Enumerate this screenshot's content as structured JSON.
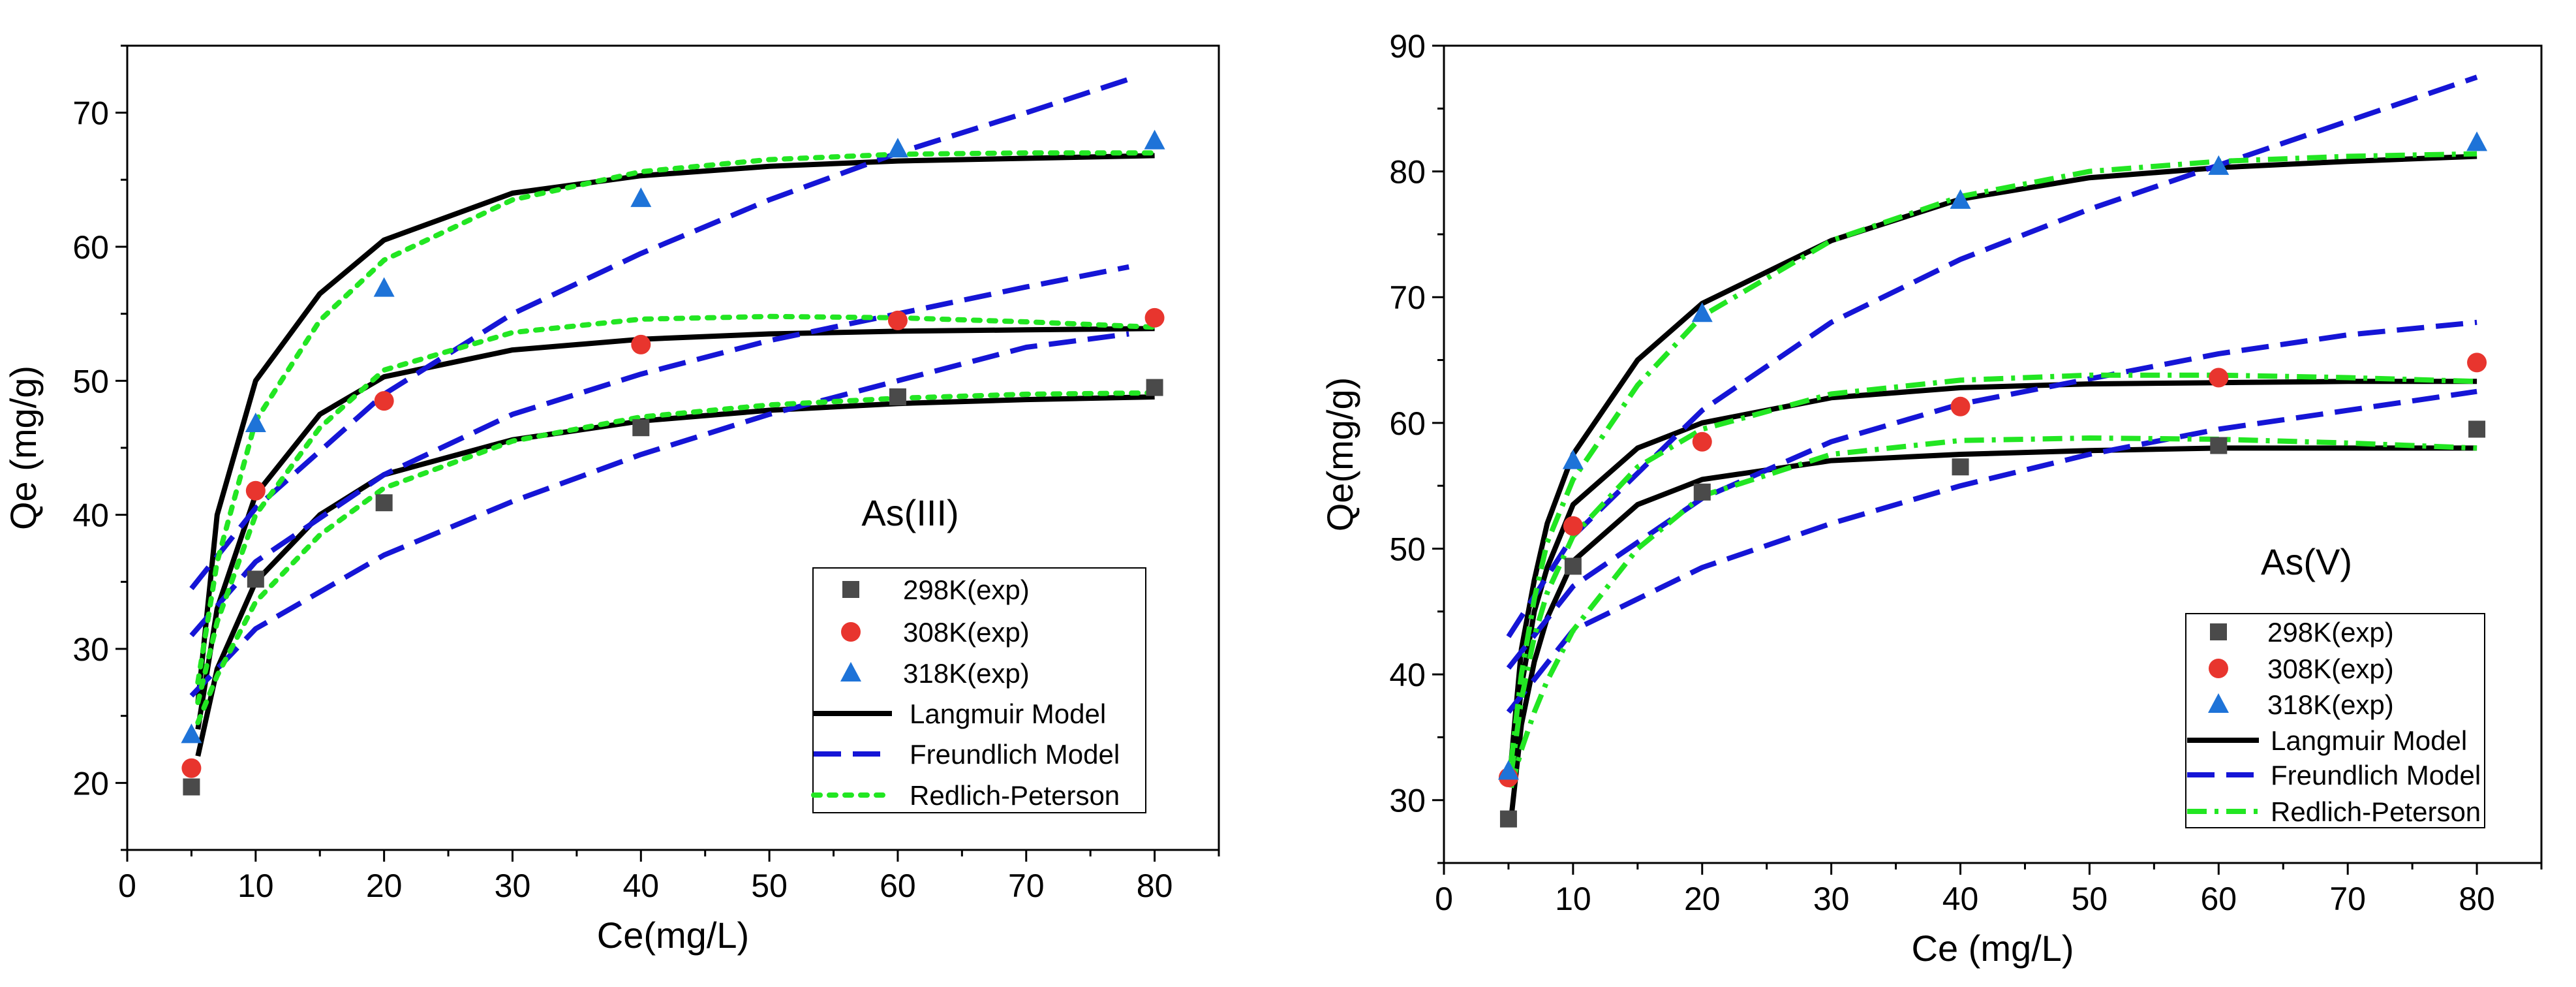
{
  "chart_data": [
    {
      "type": "scatter",
      "xlabel": "Ce(mg/L)",
      "ylabel": "Qe (mg/g)",
      "annotation": "As(III)",
      "xlim": [
        0,
        85
      ],
      "ylim": [
        15,
        75
      ],
      "xticks": [
        "0",
        "10",
        "20",
        "30",
        "40",
        "50",
        "60",
        "70",
        "80"
      ],
      "yticks": [
        "20",
        "30",
        "40",
        "50",
        "60",
        "70"
      ],
      "legend": {
        "position": "bottom-right",
        "entries": [
          "298K(exp)",
          "308K(exp)",
          "318K(exp)",
          "Langmuir Model",
          "Freundlich Model",
          "Redlich-Peterson"
        ]
      },
      "series": [
        {
          "name": "298K(exp)",
          "marker": "square",
          "color": "#4a4a4a",
          "x": [
            5,
            10,
            20,
            40,
            60,
            80
          ],
          "y": [
            19.7,
            35.2,
            40.9,
            46.5,
            48.8,
            49.5
          ]
        },
        {
          "name": "308K(exp)",
          "marker": "circle",
          "color": "#e8352e",
          "x": [
            5,
            10,
            20,
            40,
            60,
            80
          ],
          "y": [
            21.1,
            41.8,
            48.5,
            52.7,
            54.5,
            54.7
          ]
        },
        {
          "name": "318K(exp)",
          "marker": "triangle",
          "color": "#1e73d8",
          "x": [
            5,
            10,
            20,
            40,
            60,
            80
          ],
          "y": [
            23.6,
            46.8,
            56.9,
            63.6,
            67.3,
            67.9
          ]
        }
      ],
      "models": [
        {
          "name": "Langmuir Model",
          "color": "#000000",
          "style": "solid",
          "curves": [
            {
              "x": [
                5.5,
                7,
                10,
                15,
                20,
                30,
                40,
                50,
                60,
                70,
                80
              ],
              "y": [
                22,
                28.5,
                35,
                40,
                43,
                45.6,
                47,
                47.8,
                48.3,
                48.6,
                48.8
              ]
            },
            {
              "x": [
                5.5,
                7,
                10,
                15,
                20,
                30,
                40,
                50,
                60,
                70,
                80
              ],
              "y": [
                24,
                33,
                41.5,
                47.5,
                50.3,
                52.3,
                53.1,
                53.5,
                53.7,
                53.8,
                53.9
              ]
            },
            {
              "x": [
                5.5,
                7,
                10,
                15,
                20,
                30,
                40,
                50,
                60,
                70,
                80
              ],
              "y": [
                26,
                40,
                50,
                56.5,
                60.5,
                64,
                65.3,
                66,
                66.4,
                66.6,
                66.8
              ]
            }
          ]
        },
        {
          "name": "Freundlich Model",
          "color": "#1515d6",
          "style": "dashed",
          "curves": [
            {
              "x": [
                5,
                10,
                20,
                30,
                40,
                50,
                60,
                70,
                78
              ],
              "y": [
                26.5,
                31.5,
                37,
                41,
                44.5,
                47.5,
                50,
                52.5,
                53.5
              ]
            },
            {
              "x": [
                5,
                10,
                20,
                30,
                40,
                50,
                60,
                70,
                78
              ],
              "y": [
                31,
                36.5,
                43,
                47.5,
                50.5,
                53,
                55,
                57,
                58.5
              ]
            },
            {
              "x": [
                5,
                10,
                20,
                30,
                40,
                50,
                60,
                70,
                78
              ],
              "y": [
                34.5,
                40.5,
                49,
                55,
                59.5,
                63.5,
                67,
                70,
                72.5
              ]
            }
          ]
        },
        {
          "name": "Redlich-Peterson",
          "color": "#22e622",
          "style": "dotted",
          "curves": [
            {
              "x": [
                5.5,
                7,
                10,
                15,
                20,
                30,
                40,
                50,
                60,
                70,
                80
              ],
              "y": [
                24.5,
                28,
                33.5,
                38.5,
                42,
                45.5,
                47.3,
                48.2,
                48.7,
                49,
                49.1
              ]
            },
            {
              "x": [
                5.5,
                7,
                10,
                15,
                20,
                30,
                40,
                50,
                60,
                70,
                80
              ],
              "y": [
                26,
                32,
                40,
                46.5,
                50.8,
                53.6,
                54.6,
                54.8,
                54.7,
                54.4,
                54
              ]
            },
            {
              "x": [
                5.5,
                7,
                10,
                15,
                20,
                30,
                40,
                50,
                60,
                70,
                80
              ],
              "y": [
                27.5,
                36.5,
                47,
                54.5,
                59,
                63.5,
                65.6,
                66.5,
                66.9,
                67,
                67
              ]
            }
          ]
        }
      ]
    },
    {
      "type": "scatter",
      "xlabel": "Ce (mg/L)",
      "ylabel": "Qe(mg/g)",
      "annotation": "As(V)",
      "xlim": [
        0,
        85
      ],
      "ylim": [
        25,
        90
      ],
      "xticks": [
        "0",
        "10",
        "20",
        "30",
        "40",
        "50",
        "60",
        "70",
        "80"
      ],
      "yticks": [
        "30",
        "40",
        "50",
        "60",
        "70",
        "80",
        "90"
      ],
      "legend": {
        "position": "bottom-right",
        "entries": [
          "298K(exp)",
          "308K(exp)",
          "318K(exp)",
          "Langmuir Model",
          "Freundlich Model",
          "Redlich-Peterson"
        ]
      },
      "series": [
        {
          "name": "298K(exp)",
          "marker": "square",
          "color": "#4a4a4a",
          "x": [
            5,
            10,
            20,
            40,
            60,
            80
          ],
          "y": [
            28.5,
            48.6,
            54.5,
            56.5,
            58.2,
            59.5
          ]
        },
        {
          "name": "308K(exp)",
          "marker": "circle",
          "color": "#e8352e",
          "x": [
            5,
            10,
            20,
            40,
            60,
            80
          ],
          "y": [
            31.8,
            51.8,
            58.5,
            61.3,
            63.6,
            64.8
          ]
        },
        {
          "name": "318K(exp)",
          "marker": "triangle",
          "color": "#1e73d8",
          "x": [
            5,
            10,
            20,
            40,
            60,
            80
          ],
          "y": [
            32.3,
            57,
            68.7,
            77.7,
            80.4,
            82.3
          ]
        }
      ],
      "models": [
        {
          "name": "Langmuir Model",
          "color": "#000000",
          "style": "solid",
          "curves": [
            {
              "x": [
                5.2,
                6,
                7,
                8,
                10,
                15,
                20,
                30,
                40,
                50,
                60,
                70,
                80
              ],
              "y": [
                28.5,
                36,
                41,
                44.5,
                49,
                53.5,
                55.5,
                57,
                57.5,
                57.8,
                58,
                58,
                58
              ]
            },
            {
              "x": [
                5.2,
                6,
                7,
                8,
                10,
                15,
                20,
                30,
                40,
                50,
                60,
                70,
                80
              ],
              "y": [
                31,
                39,
                45,
                48.5,
                53.5,
                58,
                60,
                62,
                62.8,
                63.1,
                63.2,
                63.3,
                63.3
              ]
            },
            {
              "x": [
                5.2,
                6,
                7,
                8,
                10,
                15,
                20,
                30,
                40,
                50,
                60,
                70,
                80
              ],
              "y": [
                33,
                42,
                47.5,
                52,
                57.5,
                65,
                69.5,
                74.5,
                77.8,
                79.5,
                80.3,
                80.8,
                81.2
              ]
            }
          ]
        },
        {
          "name": "Freundlich Model",
          "color": "#1515d6",
          "style": "dashed",
          "curves": [
            {
              "x": [
                5,
                10,
                20,
                30,
                40,
                50,
                60,
                70,
                80
              ],
              "y": [
                37,
                43.5,
                48.5,
                52,
                55,
                57.5,
                59.5,
                61,
                62.5
              ]
            },
            {
              "x": [
                5,
                10,
                20,
                30,
                40,
                50,
                60,
                70,
                80
              ],
              "y": [
                40.5,
                47,
                54,
                58.5,
                61.5,
                63.5,
                65.5,
                67,
                68
              ]
            },
            {
              "x": [
                5,
                10,
                20,
                30,
                40,
                50,
                60,
                70,
                80
              ],
              "y": [
                43,
                51,
                61,
                68,
                73,
                77,
                80.5,
                84,
                87.5
              ]
            }
          ]
        },
        {
          "name": "Redlich-Peterson",
          "color": "#22e622",
          "style": "dashdot",
          "curves": [
            {
              "x": [
                5.2,
                6,
                7,
                8,
                10,
                15,
                20,
                30,
                40,
                50,
                60,
                70,
                80
              ],
              "y": [
                31,
                34,
                37,
                39.5,
                43.5,
                50,
                54.2,
                57.5,
                58.6,
                58.8,
                58.7,
                58.4,
                58
              ]
            },
            {
              "x": [
                5.2,
                6,
                7,
                8,
                10,
                15,
                20,
                30,
                40,
                50,
                60,
                70,
                80
              ],
              "y": [
                32,
                38,
                43,
                46.5,
                51,
                56.5,
                59.5,
                62.3,
                63.4,
                63.8,
                63.8,
                63.6,
                63.3
              ]
            },
            {
              "x": [
                5.2,
                6,
                7,
                8,
                10,
                15,
                20,
                30,
                40,
                50,
                60,
                70,
                80
              ],
              "y": [
                33,
                40,
                46,
                50.5,
                55.5,
                63,
                68.5,
                74.5,
                78,
                80,
                80.8,
                81.2,
                81.4
              ]
            }
          ]
        }
      ]
    }
  ]
}
